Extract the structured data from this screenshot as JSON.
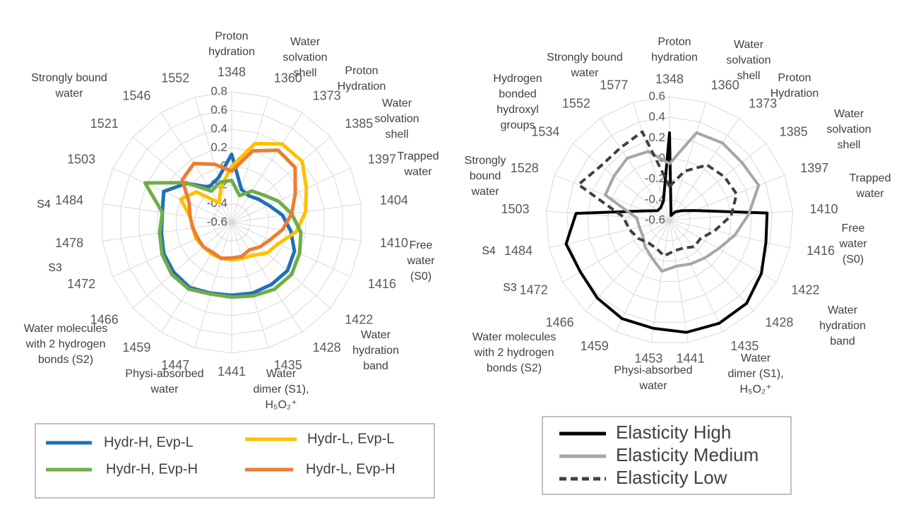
{
  "chart_data": [
    {
      "type": "radar",
      "categories": [
        "1348",
        "1360",
        "1373",
        "1385",
        "1397",
        "1404",
        "1410",
        "1416",
        "1422",
        "1428",
        "1435",
        "1441",
        "1447",
        "1459",
        "1466",
        "1472",
        "1478",
        "1484",
        "1503",
        "1521",
        "1546",
        "1552"
      ],
      "rlim": [
        -0.6,
        0.8
      ],
      "rticks": [
        -0.6,
        -0.4,
        -0.2,
        0,
        0.2,
        0.4,
        0.6,
        0.8
      ],
      "grid": true,
      "legend": "bottom",
      "series": [
        {
          "name": "Hydr-H, Evp-L",
          "color": "#2070b8",
          "values": [
            0.13,
            -0.23,
            -0.26,
            -0.22,
            -0.16,
            -0.05,
            0.04,
            0.14,
            0.19,
            0.19,
            0.19,
            0.18,
            0.19,
            0.23,
            0.22,
            0.2,
            0.16,
            0.15,
            0.2,
            0.04,
            -0.15,
            -0.1
          ]
        },
        {
          "name": "Hydr-L, Evp-L",
          "color": "#ffc000",
          "values": [
            0.0,
            0.28,
            0.4,
            0.4,
            0.28,
            0.2,
            0.1,
            -0.05,
            -0.1,
            -0.18,
            -0.2,
            -0.2,
            -0.2,
            -0.2,
            -0.2,
            -0.18,
            -0.18,
            -0.15,
            0.0,
            -0.1,
            -0.35,
            -0.2
          ]
        },
        {
          "name": "Hydr-H, Evp-H",
          "color": "#70ad47",
          "values": [
            -0.15,
            -0.3,
            -0.2,
            -0.15,
            -0.05,
            0.05,
            0.15,
            0.2,
            0.25,
            0.25,
            0.22,
            0.2,
            0.2,
            0.25,
            0.25,
            0.22,
            0.18,
            0.15,
            0.42,
            0.05,
            -0.2,
            -0.15
          ]
        },
        {
          "name": "Hydr-L, Evp-H",
          "color": "#ed7d31",
          "values": [
            -0.05,
            0.2,
            0.32,
            0.3,
            0.15,
            0.05,
            -0.05,
            -0.15,
            -0.2,
            -0.25,
            -0.22,
            -0.22,
            -0.2,
            -0.22,
            -0.2,
            -0.2,
            -0.18,
            -0.15,
            -0.1,
            0.1,
            0.15,
            0.05
          ]
        }
      ],
      "annotations": [
        [
          "Proton",
          "hydration"
        ],
        [
          "Water",
          "solvation",
          "shell"
        ],
        [
          "Proton",
          "Hydration"
        ],
        [
          "Water",
          "solvation",
          "shell"
        ],
        [
          "Trapped",
          "water"
        ],
        [
          "Free",
          "water",
          "(S0)"
        ],
        [
          "Water",
          "hydration",
          "band"
        ],
        [
          "Water",
          "dimer (S1),",
          "H₅O₂⁺"
        ],
        [
          "Physi-absorbed",
          "water"
        ],
        [
          "Water molecules",
          "with 2 hydrogen",
          "bonds (S2)"
        ],
        [
          "S3"
        ],
        [
          "S4"
        ],
        [
          "Strongly bound",
          "water"
        ]
      ]
    },
    {
      "type": "radar",
      "categories": [
        "1348",
        "1360",
        "1373",
        "1385",
        "1397",
        "1410",
        "1416",
        "1422",
        "1428",
        "1435",
        "1441",
        "1453",
        "1459",
        "1466",
        "1472",
        "1484",
        "1503",
        "1528",
        "1534",
        "1552",
        "1577"
      ],
      "rlim": [
        -0.6,
        0.6
      ],
      "rticks": [
        -0.6,
        -0.4,
        -0.2,
        0,
        0.2,
        0.4,
        0.6
      ],
      "grid": true,
      "legend": "bottom",
      "series": [
        {
          "name": "Elasticity High",
          "color": "#000000",
          "dash": false,
          "values": [
            0.25,
            -0.55,
            -0.5,
            -0.45,
            -0.34,
            0.35,
            0.36,
            0.43,
            0.5,
            0.51,
            0.5,
            0.46,
            0.46,
            0.43,
            0.4,
            0.43,
            0.31,
            -0.35,
            -0.45,
            -0.45,
            -0.4
          ]
        },
        {
          "name": "Elasticity Medium",
          "color": "#a6a6a6",
          "dash": false,
          "values": [
            -0.05,
            0.29,
            0.31,
            0.3,
            0.33,
            0.17,
            0.05,
            -0.05,
            -0.1,
            -0.13,
            -0.15,
            -0.1,
            -0.2,
            -0.25,
            -0.3,
            -0.3,
            -0.28,
            0.07,
            0.09,
            0.13,
            0.1
          ]
        },
        {
          "name": "Elasticity Low",
          "color": "#404040",
          "dash": true,
          "values": [
            -0.27,
            -0.1,
            0.05,
            0.08,
            0.1,
            0.0,
            -0.15,
            -0.25,
            -0.25,
            -0.3,
            -0.3,
            -0.25,
            -0.3,
            -0.3,
            -0.25,
            -0.2,
            -0.15,
            0.35,
            0.25,
            0.25,
            0.3
          ]
        }
      ],
      "annotations": [
        [
          "Proton",
          "hydration"
        ],
        [
          "Water",
          "solvation",
          "shell"
        ],
        [
          "Proton",
          "Hydration"
        ],
        [
          "Water",
          "solvation",
          "shell"
        ],
        [
          "Trapped",
          "water"
        ],
        [
          "Free",
          "water",
          "(S0)"
        ],
        [
          "Water",
          "hydration",
          "band"
        ],
        [
          "Water",
          "dimer (S1),",
          "H₅O₂⁺"
        ],
        [
          "Physi-absorbed",
          "water"
        ],
        [
          "Water molecules",
          "with 2 hydrogen",
          "bonds (S2)"
        ],
        [
          "S3"
        ],
        [
          "S4"
        ],
        [
          "Strongly",
          "bound",
          "water"
        ],
        [
          "Hydrogen",
          "bonded",
          "hydroxyl",
          "groups"
        ],
        [
          "Strongly bound",
          "water"
        ]
      ]
    }
  ]
}
